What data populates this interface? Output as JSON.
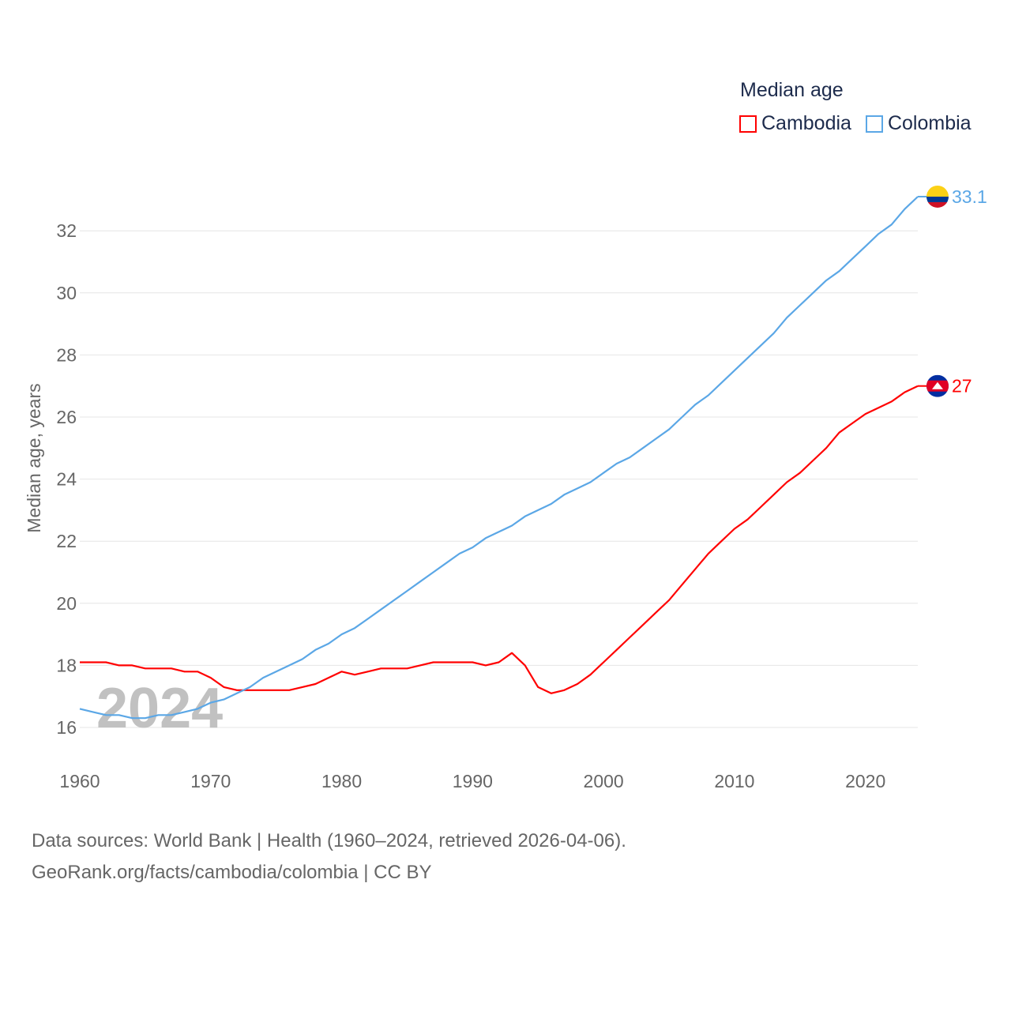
{
  "chart_data": {
    "type": "line",
    "title": "Median age",
    "xlabel": "",
    "ylabel": "Median age, years",
    "xlim": [
      1960,
      2024
    ],
    "ylim": [
      16,
      33.1
    ],
    "yticks": [
      16,
      18,
      20,
      22,
      24,
      26,
      28,
      30,
      32
    ],
    "xticks": [
      1960,
      1970,
      1980,
      1990,
      2000,
      2010,
      2020
    ],
    "grid": true,
    "legend_placement": "top-right",
    "year_watermark": "2024",
    "x": [
      1960,
      1961,
      1962,
      1963,
      1964,
      1965,
      1966,
      1967,
      1968,
      1969,
      1970,
      1971,
      1972,
      1973,
      1974,
      1975,
      1976,
      1977,
      1978,
      1979,
      1980,
      1981,
      1982,
      1983,
      1984,
      1985,
      1986,
      1987,
      1988,
      1989,
      1990,
      1991,
      1992,
      1993,
      1994,
      1995,
      1996,
      1997,
      1998,
      1999,
      2000,
      2001,
      2002,
      2003,
      2004,
      2005,
      2006,
      2007,
      2008,
      2009,
      2010,
      2011,
      2012,
      2013,
      2014,
      2015,
      2016,
      2017,
      2018,
      2019,
      2020,
      2021,
      2022,
      2023,
      2024
    ],
    "series": [
      {
        "name": "Cambodia",
        "color": "#ff0000",
        "end_label": "27",
        "values": [
          18.1,
          18.1,
          18.1,
          18.0,
          18.0,
          17.9,
          17.9,
          17.9,
          17.8,
          17.8,
          17.6,
          17.3,
          17.2,
          17.2,
          17.2,
          17.2,
          17.2,
          17.3,
          17.4,
          17.6,
          17.8,
          17.7,
          17.8,
          17.9,
          17.9,
          17.9,
          18.0,
          18.1,
          18.1,
          18.1,
          18.1,
          18.0,
          18.1,
          18.4,
          18.0,
          17.3,
          17.1,
          17.2,
          17.4,
          17.7,
          18.1,
          18.5,
          18.9,
          19.3,
          19.7,
          20.1,
          20.6,
          21.1,
          21.6,
          22.0,
          22.4,
          22.7,
          23.1,
          23.5,
          23.9,
          24.2,
          24.6,
          25.0,
          25.5,
          25.8,
          26.1,
          26.3,
          26.5,
          26.8,
          27.0
        ]
      },
      {
        "name": "Colombia",
        "color": "#5ba7e6",
        "end_label": "33.1",
        "values": [
          16.6,
          16.5,
          16.4,
          16.4,
          16.3,
          16.3,
          16.4,
          16.4,
          16.5,
          16.6,
          16.8,
          16.9,
          17.1,
          17.3,
          17.6,
          17.8,
          18.0,
          18.2,
          18.5,
          18.7,
          19.0,
          19.2,
          19.5,
          19.8,
          20.1,
          20.4,
          20.7,
          21.0,
          21.3,
          21.6,
          21.8,
          22.1,
          22.3,
          22.5,
          22.8,
          23.0,
          23.2,
          23.5,
          23.7,
          23.9,
          24.2,
          24.5,
          24.7,
          25.0,
          25.3,
          25.6,
          26.0,
          26.4,
          26.7,
          27.1,
          27.5,
          27.9,
          28.3,
          28.7,
          29.2,
          29.6,
          30.0,
          30.4,
          30.7,
          31.1,
          31.5,
          31.9,
          32.2,
          32.7,
          33.1
        ]
      }
    ]
  },
  "footer": {
    "line1": "Data sources: World Bank | Health (1960–2024, retrieved 2026-04-06).",
    "line2": "GeoRank.org/facts/cambodia/colombia | CC BY"
  }
}
